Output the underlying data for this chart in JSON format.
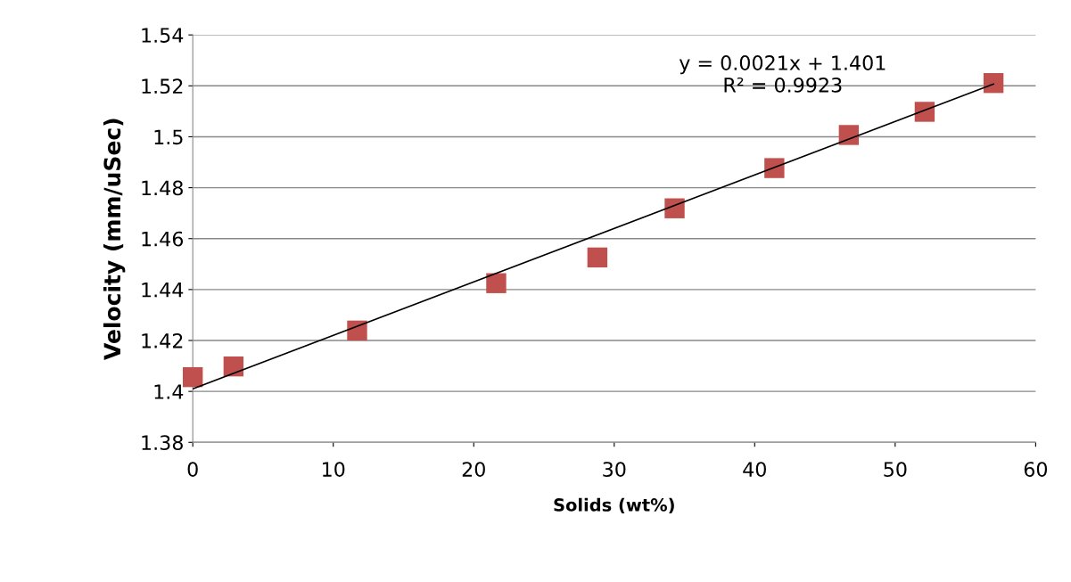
{
  "chart_data": {
    "type": "scatter",
    "xlabel": "Solids (wt%)",
    "ylabel": "Velocity (mm/uSec)",
    "xlim": [
      0,
      60
    ],
    "xticks": [
      0,
      10,
      20,
      30,
      40,
      50,
      60
    ],
    "ylim": [
      1.38,
      1.54
    ],
    "yticks": [
      1.38,
      1.4,
      1.42,
      1.44,
      1.46,
      1.48,
      1.5,
      1.52,
      1.54
    ],
    "grid": "y",
    "legend": false,
    "series": [
      {
        "marker": "square",
        "color": "#c0504d",
        "x": [
          0,
          2.9,
          11.7,
          21.6,
          28.8,
          34.3,
          41.4,
          46.7,
          52.1,
          57.0
        ],
        "values": [
          1.4056,
          1.4098,
          1.4239,
          1.4425,
          1.4526,
          1.4719,
          1.4877,
          1.5007,
          1.5098,
          1.5211
        ]
      },
      {
        "type": "line",
        "marker": "none",
        "color": "#000000",
        "x": [
          0,
          57.0
        ],
        "values": [
          1.401,
          1.5207
        ]
      }
    ],
    "annotations": [
      "y = 0.0021x + 1.401\nR² = 0.9923"
    ]
  }
}
